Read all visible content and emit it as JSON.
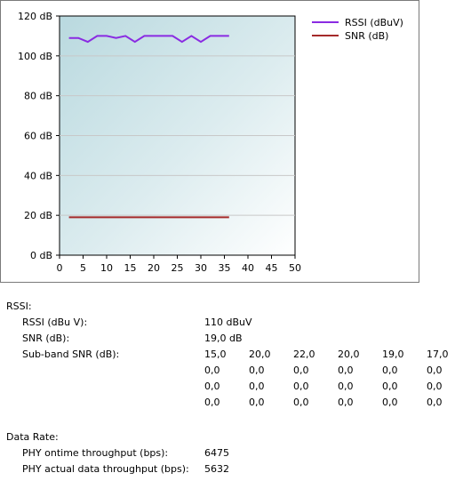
{
  "chart_data": {
    "type": "line",
    "xlim": [
      0,
      50
    ],
    "ylim": [
      0,
      120
    ],
    "x_ticks": [
      "0",
      "5",
      "10",
      "15",
      "20",
      "25",
      "30",
      "35",
      "40",
      "45",
      "50"
    ],
    "y_ticks": [
      "0 dB",
      "20 dB",
      "40 dB",
      "60 dB",
      "80 dB",
      "100 dB",
      "120 dB"
    ],
    "grid": true,
    "legend_position": "top-right",
    "series": [
      {
        "name": "RSSI (dBuV)",
        "color": "#8a2be2",
        "x": [
          2,
          4,
          6,
          8,
          10,
          12,
          14,
          16,
          18,
          20,
          22,
          24,
          26,
          28,
          30,
          32,
          34,
          36
        ],
        "y": [
          109,
          109,
          107,
          110,
          110,
          109,
          110,
          107,
          110,
          110,
          110,
          110,
          107,
          110,
          107,
          110,
          110,
          110
        ]
      },
      {
        "name": "SNR (dB)",
        "color": "#a52a2a",
        "x": [
          2,
          36
        ],
        "y": [
          19,
          19
        ]
      }
    ]
  },
  "rssi_section": {
    "title": "RSSI:",
    "rows": [
      {
        "label": "RSSI (dBu V):",
        "value": "110 dBuV"
      },
      {
        "label": "SNR (dB):",
        "value": "19,0 dB"
      },
      {
        "label": "Sub-band SNR (dB):"
      }
    ],
    "subband_snr": [
      [
        "15,0",
        "20,0",
        "22,0",
        "20,0",
        "19,0",
        "17,0"
      ],
      [
        "0,0",
        "0,0",
        "0,0",
        "0,0",
        "0,0",
        "0,0"
      ],
      [
        "0,0",
        "0,0",
        "0,0",
        "0,0",
        "0,0",
        "0,0"
      ],
      [
        "0,0",
        "0,0",
        "0,0",
        "0,0",
        "0,0",
        "0,0"
      ]
    ]
  },
  "data_rate_section": {
    "title": "Data Rate:",
    "rows": [
      {
        "label": "PHY ontime throughput (bps):",
        "value": "6475"
      },
      {
        "label": "PHY actual data throughput (bps):",
        "value": "5632"
      }
    ]
  }
}
